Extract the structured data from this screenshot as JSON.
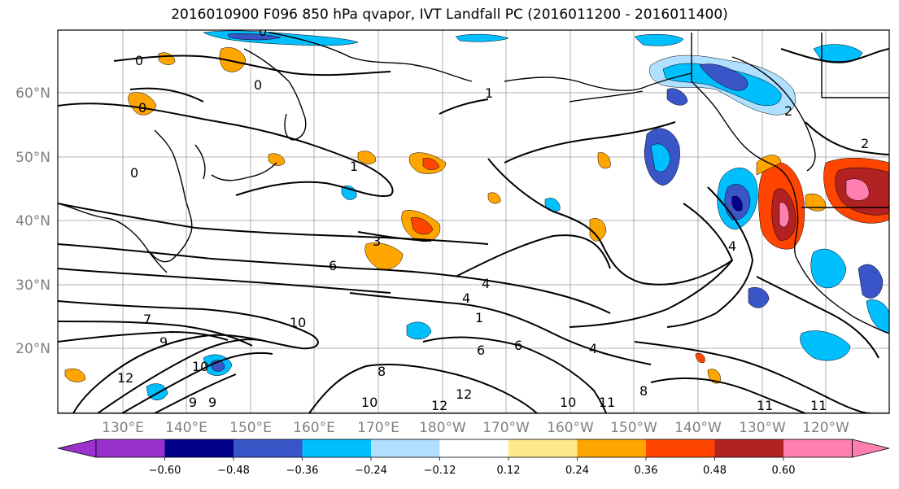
{
  "title": "2016010900 F096 850 hPa qvapor, IVT Landfall PC (2016011200 - 2016011400)",
  "lat_labels": [
    "60°N",
    "50°N",
    "40°N",
    "30°N",
    "20°N"
  ],
  "lon_labels": [
    "130°E",
    "140°E",
    "150°E",
    "160°E",
    "170°E",
    "180°W",
    "170°W",
    "160°W",
    "150°W",
    "140°W",
    "130°W",
    "120°W"
  ],
  "colorbar": {
    "colors": [
      "#9932cc",
      "#00008b",
      "#3a55c8",
      "#00bfff",
      "#b0e0ff",
      "#ffffff",
      "#ffffff",
      "#ffe88a",
      "#ffa500",
      "#ff4500",
      "#b22222",
      "#ff80b0"
    ],
    "tick_labels": [
      "−0.60",
      "−0.48",
      "−0.36",
      "−0.24",
      "−0.12",
      "0.12",
      "0.24",
      "0.36",
      "0.48",
      "0.60"
    ]
  },
  "contour_labels": [
    "0",
    "0",
    "0",
    "0",
    "0",
    "1",
    "1",
    "1",
    "2",
    "2",
    "3",
    "4",
    "4",
    "4",
    "4",
    "6",
    "6",
    "6",
    "7",
    "9",
    "9",
    "9",
    "10",
    "10",
    "10",
    "11",
    "11",
    "12",
    "12",
    "12",
    "8",
    "8",
    "10",
    "11"
  ],
  "chart_data": {
    "type": "map",
    "variable": "850 hPa qvapor, IVT Landfall PC",
    "init": "2016010900",
    "forecast": "F096",
    "period": "2016011200 - 2016011400",
    "lat_range": [
      "~10°N",
      "~70°N"
    ],
    "lon_range": [
      "~120°E",
      "~110°W"
    ],
    "shading_levels": [
      -0.6,
      -0.48,
      -0.36,
      -0.24,
      -0.12,
      0.12,
      0.24,
      0.36,
      0.48,
      0.6
    ],
    "grid": true
  }
}
